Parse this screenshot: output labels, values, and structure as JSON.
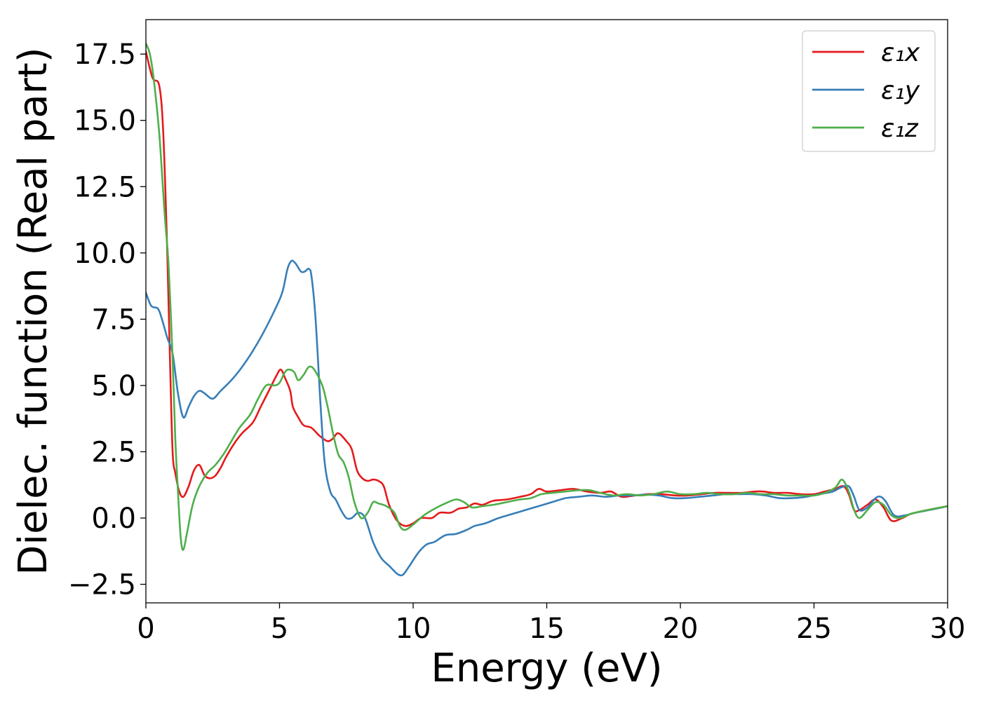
{
  "chart_data": {
    "type": "line",
    "title": "",
    "xlabel": "Energy (eV)",
    "ylabel": "Dielec. function (Real part)",
    "xlim": [
      0,
      30
    ],
    "ylim": [
      -3.2,
      18.8
    ],
    "xticks": [
      0,
      5,
      10,
      15,
      20,
      25,
      30
    ],
    "xtick_labels": [
      "0",
      "5",
      "10",
      "15",
      "20",
      "25",
      "30"
    ],
    "yticks": [
      -2.5,
      0.0,
      2.5,
      5.0,
      7.5,
      10.0,
      12.5,
      15.0,
      17.5
    ],
    "ytick_labels": [
      "−2.5",
      "0.0",
      "2.5",
      "5.0",
      "7.5",
      "10.0",
      "12.5",
      "15.0",
      "17.5"
    ],
    "grid": false,
    "legend_position": "top-right",
    "series": [
      {
        "name": "ε₁x",
        "color": "#e41a1c",
        "points": [
          [
            0,
            17.6
          ],
          [
            0.25,
            16.6
          ],
          [
            0.5,
            16.3
          ],
          [
            0.65,
            14.5
          ],
          [
            0.8,
            10.0
          ],
          [
            0.9,
            6.0
          ],
          [
            1.0,
            2.5
          ],
          [
            1.1,
            1.7
          ],
          [
            1.25,
            1.0
          ],
          [
            1.4,
            0.8
          ],
          [
            1.6,
            1.2
          ],
          [
            1.8,
            1.8
          ],
          [
            2.0,
            2.0
          ],
          [
            2.2,
            1.6
          ],
          [
            2.4,
            1.5
          ],
          [
            2.6,
            1.6
          ],
          [
            2.8,
            1.9
          ],
          [
            3.0,
            2.3
          ],
          [
            3.3,
            2.8
          ],
          [
            3.6,
            3.2
          ],
          [
            4.0,
            3.6
          ],
          [
            4.3,
            4.2
          ],
          [
            4.6,
            4.8
          ],
          [
            4.9,
            5.4
          ],
          [
            5.05,
            5.6
          ],
          [
            5.2,
            5.3
          ],
          [
            5.4,
            4.8
          ],
          [
            5.5,
            4.2
          ],
          [
            5.7,
            3.8
          ],
          [
            5.9,
            3.5
          ],
          [
            6.2,
            3.4
          ],
          [
            6.5,
            3.1
          ],
          [
            6.8,
            2.9
          ],
          [
            7.0,
            3.0
          ],
          [
            7.2,
            3.2
          ],
          [
            7.5,
            2.9
          ],
          [
            7.7,
            2.6
          ],
          [
            7.9,
            1.8
          ],
          [
            8.1,
            1.5
          ],
          [
            8.3,
            1.4
          ],
          [
            8.5,
            1.45
          ],
          [
            8.7,
            1.4
          ],
          [
            8.9,
            1.2
          ],
          [
            9.1,
            0.5
          ],
          [
            9.4,
            -0.1
          ],
          [
            9.7,
            -0.3
          ],
          [
            10.0,
            -0.2
          ],
          [
            10.3,
            0.0
          ],
          [
            10.7,
            0.0
          ],
          [
            11.0,
            0.2
          ],
          [
            11.4,
            0.2
          ],
          [
            11.7,
            0.35
          ],
          [
            12.0,
            0.4
          ],
          [
            12.3,
            0.55
          ],
          [
            12.6,
            0.5
          ],
          [
            13.0,
            0.65
          ],
          [
            13.5,
            0.7
          ],
          [
            14.0,
            0.8
          ],
          [
            14.4,
            0.9
          ],
          [
            14.7,
            1.1
          ],
          [
            15.0,
            1.0
          ],
          [
            15.5,
            1.05
          ],
          [
            16.0,
            1.1
          ],
          [
            16.5,
            1.0
          ],
          [
            17.0,
            0.95
          ],
          [
            17.4,
            1.0
          ],
          [
            17.8,
            0.8
          ],
          [
            18.3,
            0.85
          ],
          [
            18.8,
            0.9
          ],
          [
            19.3,
            0.9
          ],
          [
            19.8,
            0.85
          ],
          [
            20.3,
            0.85
          ],
          [
            20.8,
            0.9
          ],
          [
            21.3,
            0.95
          ],
          [
            21.8,
            0.95
          ],
          [
            22.3,
            0.95
          ],
          [
            22.8,
            1.0
          ],
          [
            23.1,
            1.0
          ],
          [
            23.5,
            0.95
          ],
          [
            24.0,
            0.95
          ],
          [
            24.5,
            0.9
          ],
          [
            25.0,
            0.9
          ],
          [
            25.4,
            1.0
          ],
          [
            25.8,
            1.1
          ],
          [
            26.1,
            1.2
          ],
          [
            26.3,
            0.9
          ],
          [
            26.5,
            0.3
          ],
          [
            26.7,
            0.3
          ],
          [
            27.0,
            0.5
          ],
          [
            27.3,
            0.7
          ],
          [
            27.6,
            0.4
          ],
          [
            27.9,
            -0.1
          ],
          [
            28.3,
            0.0
          ],
          [
            28.6,
            0.15
          ],
          [
            29.0,
            0.25
          ],
          [
            29.5,
            0.35
          ],
          [
            30.0,
            0.45
          ]
        ]
      },
      {
        "name": "ε₁y",
        "color": "#377eb8",
        "points": [
          [
            0,
            8.5
          ],
          [
            0.2,
            8.0
          ],
          [
            0.45,
            7.9
          ],
          [
            0.6,
            7.5
          ],
          [
            0.8,
            6.8
          ],
          [
            1.0,
            6.2
          ],
          [
            1.2,
            4.7
          ],
          [
            1.4,
            3.8
          ],
          [
            1.6,
            4.2
          ],
          [
            1.8,
            4.6
          ],
          [
            2.0,
            4.8
          ],
          [
            2.2,
            4.7
          ],
          [
            2.5,
            4.5
          ],
          [
            2.8,
            4.8
          ],
          [
            3.2,
            5.2
          ],
          [
            3.6,
            5.7
          ],
          [
            4.0,
            6.3
          ],
          [
            4.4,
            7.0
          ],
          [
            4.8,
            7.8
          ],
          [
            5.1,
            8.5
          ],
          [
            5.3,
            9.4
          ],
          [
            5.45,
            9.7
          ],
          [
            5.6,
            9.6
          ],
          [
            5.8,
            9.3
          ],
          [
            5.95,
            9.3
          ],
          [
            6.1,
            9.4
          ],
          [
            6.2,
            9.1
          ],
          [
            6.35,
            7.5
          ],
          [
            6.55,
            4.0
          ],
          [
            6.7,
            2.0
          ],
          [
            6.9,
            1.0
          ],
          [
            7.1,
            0.7
          ],
          [
            7.3,
            0.3
          ],
          [
            7.5,
            0.0
          ],
          [
            7.7,
            0.0
          ],
          [
            7.95,
            0.2
          ],
          [
            8.2,
            0.0
          ],
          [
            8.5,
            -0.9
          ],
          [
            8.8,
            -1.5
          ],
          [
            9.1,
            -1.8
          ],
          [
            9.4,
            -2.1
          ],
          [
            9.6,
            -2.15
          ],
          [
            9.8,
            -1.9
          ],
          [
            10.2,
            -1.3
          ],
          [
            10.5,
            -1.0
          ],
          [
            10.8,
            -0.9
          ],
          [
            11.2,
            -0.65
          ],
          [
            11.6,
            -0.6
          ],
          [
            12.0,
            -0.45
          ],
          [
            12.3,
            -0.3
          ],
          [
            12.7,
            -0.2
          ],
          [
            13.2,
            0.0
          ],
          [
            13.7,
            0.15
          ],
          [
            14.2,
            0.3
          ],
          [
            14.7,
            0.45
          ],
          [
            15.2,
            0.6
          ],
          [
            15.7,
            0.75
          ],
          [
            16.2,
            0.8
          ],
          [
            16.7,
            0.85
          ],
          [
            17.2,
            0.8
          ],
          [
            17.7,
            0.85
          ],
          [
            18.2,
            0.85
          ],
          [
            18.7,
            0.88
          ],
          [
            19.2,
            0.85
          ],
          [
            19.7,
            0.75
          ],
          [
            20.2,
            0.75
          ],
          [
            20.7,
            0.8
          ],
          [
            21.2,
            0.85
          ],
          [
            21.7,
            0.9
          ],
          [
            22.2,
            0.9
          ],
          [
            22.7,
            0.9
          ],
          [
            23.2,
            0.85
          ],
          [
            23.7,
            0.75
          ],
          [
            24.2,
            0.75
          ],
          [
            24.7,
            0.8
          ],
          [
            25.2,
            0.9
          ],
          [
            25.7,
            1.0
          ],
          [
            26.0,
            1.15
          ],
          [
            26.3,
            1.2
          ],
          [
            26.5,
            0.8
          ],
          [
            26.7,
            0.3
          ],
          [
            27.0,
            0.4
          ],
          [
            27.3,
            0.75
          ],
          [
            27.5,
            0.8
          ],
          [
            27.7,
            0.6
          ],
          [
            28.0,
            0.1
          ],
          [
            28.4,
            0.1
          ],
          [
            28.8,
            0.2
          ],
          [
            29.3,
            0.3
          ],
          [
            29.8,
            0.4
          ],
          [
            30.0,
            0.45
          ]
        ]
      },
      {
        "name": "ε₁z",
        "color": "#4daf4a",
        "points": [
          [
            0,
            17.9
          ],
          [
            0.15,
            17.5
          ],
          [
            0.3,
            16.5
          ],
          [
            0.5,
            14.5
          ],
          [
            0.7,
            11.5
          ],
          [
            0.85,
            9.5
          ],
          [
            1.0,
            6.0
          ],
          [
            1.1,
            3.0
          ],
          [
            1.2,
            1.0
          ],
          [
            1.3,
            -0.7
          ],
          [
            1.4,
            -1.2
          ],
          [
            1.55,
            -0.5
          ],
          [
            1.75,
            0.5
          ],
          [
            2.0,
            1.2
          ],
          [
            2.3,
            1.7
          ],
          [
            2.6,
            2.0
          ],
          [
            2.9,
            2.4
          ],
          [
            3.2,
            2.9
          ],
          [
            3.5,
            3.4
          ],
          [
            3.9,
            3.9
          ],
          [
            4.2,
            4.5
          ],
          [
            4.5,
            5.0
          ],
          [
            4.8,
            5.0
          ],
          [
            5.0,
            5.1
          ],
          [
            5.2,
            5.5
          ],
          [
            5.35,
            5.6
          ],
          [
            5.55,
            5.5
          ],
          [
            5.7,
            5.2
          ],
          [
            5.9,
            5.4
          ],
          [
            6.1,
            5.7
          ],
          [
            6.3,
            5.6
          ],
          [
            6.6,
            5.0
          ],
          [
            6.8,
            4.2
          ],
          [
            7.0,
            3.2
          ],
          [
            7.2,
            2.4
          ],
          [
            7.4,
            2.1
          ],
          [
            7.6,
            1.5
          ],
          [
            7.8,
            0.6
          ],
          [
            8.05,
            0.0
          ],
          [
            8.3,
            0.2
          ],
          [
            8.5,
            0.6
          ],
          [
            8.7,
            0.55
          ],
          [
            9.0,
            0.45
          ],
          [
            9.3,
            0.2
          ],
          [
            9.5,
            -0.3
          ],
          [
            9.7,
            -0.45
          ],
          [
            10.0,
            -0.25
          ],
          [
            10.4,
            0.1
          ],
          [
            10.8,
            0.35
          ],
          [
            11.2,
            0.55
          ],
          [
            11.6,
            0.7
          ],
          [
            11.9,
            0.6
          ],
          [
            12.2,
            0.4
          ],
          [
            12.6,
            0.45
          ],
          [
            13.0,
            0.5
          ],
          [
            13.5,
            0.6
          ],
          [
            14.0,
            0.7
          ],
          [
            14.4,
            0.75
          ],
          [
            14.8,
            0.9
          ],
          [
            15.2,
            0.95
          ],
          [
            15.7,
            1.0
          ],
          [
            16.2,
            1.05
          ],
          [
            16.6,
            1.05
          ],
          [
            17.0,
            0.95
          ],
          [
            17.5,
            0.85
          ],
          [
            18.0,
            0.9
          ],
          [
            18.5,
            0.85
          ],
          [
            19.0,
            0.9
          ],
          [
            19.5,
            1.0
          ],
          [
            20.0,
            0.9
          ],
          [
            20.5,
            0.9
          ],
          [
            21.0,
            0.95
          ],
          [
            21.5,
            0.9
          ],
          [
            22.0,
            0.9
          ],
          [
            22.5,
            0.95
          ],
          [
            23.0,
            0.9
          ],
          [
            23.5,
            0.9
          ],
          [
            24.0,
            0.85
          ],
          [
            24.5,
            0.85
          ],
          [
            25.0,
            0.85
          ],
          [
            25.4,
            0.95
          ],
          [
            25.8,
            1.15
          ],
          [
            26.05,
            1.45
          ],
          [
            26.3,
            1.0
          ],
          [
            26.5,
            0.3
          ],
          [
            26.7,
            0.0
          ],
          [
            27.0,
            0.3
          ],
          [
            27.3,
            0.6
          ],
          [
            27.6,
            0.5
          ],
          [
            27.9,
            0.1
          ],
          [
            28.2,
            0.0
          ],
          [
            28.6,
            0.15
          ],
          [
            29.0,
            0.25
          ],
          [
            29.5,
            0.35
          ],
          [
            30.0,
            0.45
          ]
        ]
      }
    ]
  }
}
